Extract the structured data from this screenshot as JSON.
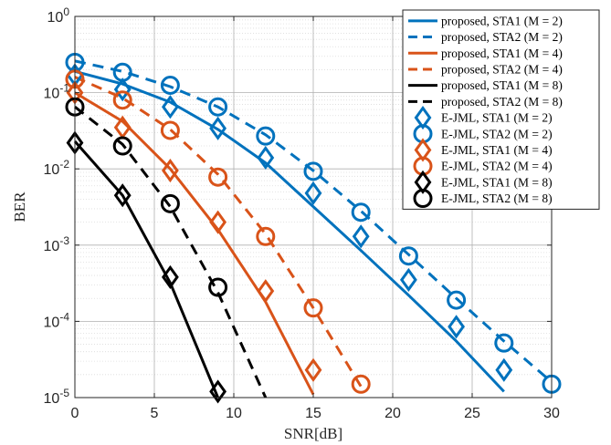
{
  "chart_data": {
    "type": "line",
    "xlabel": "SNR[dB]",
    "ylabel": "BER",
    "xlim": [
      0,
      30
    ],
    "ylim": [
      1e-05,
      1
    ],
    "yscale": "log",
    "grid": true,
    "legend_position": "top-right",
    "xticks": [
      "0",
      "5",
      "10",
      "15",
      "20",
      "25",
      "30"
    ],
    "yticks": [
      {
        "base": "10",
        "exp": "0"
      },
      {
        "base": "10",
        "exp": "-1"
      },
      {
        "base": "10",
        "exp": "-2"
      },
      {
        "base": "10",
        "exp": "-3"
      },
      {
        "base": "10",
        "exp": "-4"
      },
      {
        "base": "10",
        "exp": "-5"
      }
    ],
    "series": [
      {
        "name": "proposed, STA1 (M = 2)",
        "color": "#0072BD",
        "line": "solid",
        "marker": "none",
        "x": [
          0,
          3,
          6,
          9,
          12,
          15,
          18,
          21,
          24,
          27
        ],
        "y": [
          0.19,
          0.13,
          0.075,
          0.033,
          0.012,
          0.0032,
          0.00085,
          0.00022,
          5.5e-05,
          1.2e-05
        ]
      },
      {
        "name": "proposed, STA2 (M = 2)",
        "color": "#0072BD",
        "line": "dashed",
        "marker": "none",
        "x": [
          0,
          3,
          6,
          9,
          12,
          15,
          18,
          21,
          24,
          27,
          30
        ],
        "y": [
          0.26,
          0.19,
          0.12,
          0.065,
          0.028,
          0.0095,
          0.0028,
          0.00075,
          0.0002,
          5.5e-05,
          1.6e-05
        ]
      },
      {
        "name": "proposed, STA1 (M = 4)",
        "color": "#D95319",
        "line": "solid",
        "marker": "none",
        "x": [
          0,
          3,
          6,
          9,
          12,
          15
        ],
        "y": [
          0.1,
          0.042,
          0.01,
          0.0016,
          0.00018,
          1.1e-05
        ]
      },
      {
        "name": "proposed, STA2 (M = 4)",
        "color": "#D95319",
        "line": "dashed",
        "marker": "none",
        "x": [
          0,
          3,
          6,
          9,
          12,
          15,
          18
        ],
        "y": [
          0.16,
          0.085,
          0.033,
          0.0085,
          0.0014,
          0.00015,
          1.4e-05
        ]
      },
      {
        "name": "proposed, STA1 (M = 8)",
        "color": "#000000",
        "line": "solid",
        "marker": "none",
        "x": [
          0,
          3,
          6,
          9
        ],
        "y": [
          0.023,
          0.0045,
          0.00032,
          1e-05
        ]
      },
      {
        "name": "proposed, STA2 (M = 8)",
        "color": "#000000",
        "line": "dashed",
        "marker": "none",
        "x": [
          0,
          3,
          6,
          9,
          12
        ],
        "y": [
          0.065,
          0.021,
          0.0032,
          0.00024,
          1e-05
        ]
      },
      {
        "name": "E-JML, STA1 (M = 2)",
        "color": "#0072BD",
        "line": "none",
        "marker": "diamond",
        "x": [
          0,
          3,
          6,
          9,
          12,
          15,
          18,
          21,
          24,
          27
        ],
        "y": [
          0.17,
          0.11,
          0.065,
          0.034,
          0.014,
          0.0048,
          0.0013,
          0.00035,
          8.5e-05,
          2.3e-05
        ]
      },
      {
        "name": "E-JML, STA2 (M = 2)",
        "color": "#0072BD",
        "line": "none",
        "marker": "circle",
        "x": [
          0,
          3,
          6,
          9,
          12,
          15,
          18,
          21,
          24,
          27,
          30
        ],
        "y": [
          0.25,
          0.185,
          0.125,
          0.065,
          0.027,
          0.0093,
          0.0027,
          0.00072,
          0.00019,
          5.2e-05,
          1.5e-05
        ]
      },
      {
        "name": "E-JML, STA1 (M = 4)",
        "color": "#D95319",
        "line": "none",
        "marker": "diamond",
        "x": [
          0,
          3,
          6,
          9,
          12,
          15
        ],
        "y": [
          0.1,
          0.035,
          0.0095,
          0.002,
          0.00025,
          2.3e-05
        ]
      },
      {
        "name": "E-JML, STA2 (M = 4)",
        "color": "#D95319",
        "line": "none",
        "marker": "circle",
        "x": [
          0,
          3,
          6,
          9,
          12,
          15,
          18
        ],
        "y": [
          0.15,
          0.08,
          0.032,
          0.0078,
          0.0013,
          0.00015,
          1.5e-05
        ]
      },
      {
        "name": "E-JML, STA1 (M = 8)",
        "color": "#000000",
        "line": "none",
        "marker": "diamond",
        "x": [
          0,
          3,
          6,
          9
        ],
        "y": [
          0.022,
          0.0045,
          0.00038,
          1.2e-05
        ]
      },
      {
        "name": "E-JML, STA2 (M = 8)",
        "color": "#000000",
        "line": "none",
        "marker": "circle",
        "x": [
          0,
          3,
          6,
          9
        ],
        "y": [
          0.065,
          0.02,
          0.0035,
          0.00028
        ]
      }
    ]
  }
}
